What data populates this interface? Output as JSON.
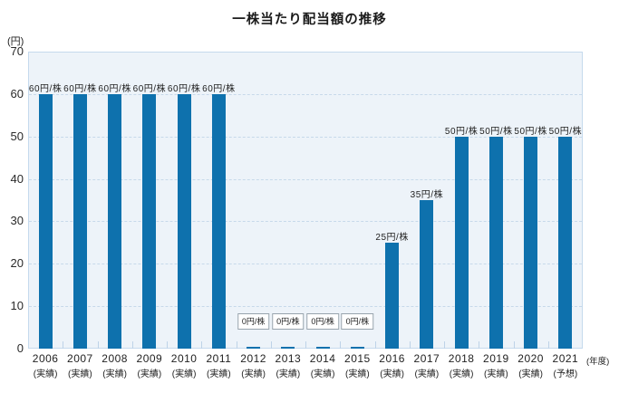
{
  "chart_data": {
    "type": "bar",
    "title": "一株当たり配当額の推移",
    "ylabel": "(円)",
    "xlabel": "(年度)",
    "ylim": [
      0,
      70
    ],
    "ytick_step": 10,
    "grid": "horizontal-dashed",
    "legend": "none",
    "bar_color": "#0e71ad",
    "plot_bg": "#edf3f9",
    "plot_border": "#c5daed",
    "categories": [
      {
        "year": "2006",
        "status": "(実績)",
        "value": 60,
        "label": "60円/株",
        "boxed": false
      },
      {
        "year": "2007",
        "status": "(実績)",
        "value": 60,
        "label": "60円/株",
        "boxed": false
      },
      {
        "year": "2008",
        "status": "(実績)",
        "value": 60,
        "label": "60円/株",
        "boxed": false
      },
      {
        "year": "2009",
        "status": "(実績)",
        "value": 60,
        "label": "60円/株",
        "boxed": false
      },
      {
        "year": "2010",
        "status": "(実績)",
        "value": 60,
        "label": "60円/株",
        "boxed": false
      },
      {
        "year": "2011",
        "status": "(実績)",
        "value": 60,
        "label": "60円/株",
        "boxed": false
      },
      {
        "year": "2012",
        "status": "(実績)",
        "value": 0,
        "label": "0円/株",
        "boxed": true
      },
      {
        "year": "2013",
        "status": "(実績)",
        "value": 0,
        "label": "0円/株",
        "boxed": true
      },
      {
        "year": "2014",
        "status": "(実績)",
        "value": 0,
        "label": "0円/株",
        "boxed": true
      },
      {
        "year": "2015",
        "status": "(実績)",
        "value": 0,
        "label": "0円/株",
        "boxed": true
      },
      {
        "year": "2016",
        "status": "(実績)",
        "value": 25,
        "label": "25円/株",
        "boxed": false
      },
      {
        "year": "2017",
        "status": "(実績)",
        "value": 35,
        "label": "35円/株",
        "boxed": false
      },
      {
        "year": "2018",
        "status": "(実績)",
        "value": 50,
        "label": "50円/株",
        "boxed": false
      },
      {
        "year": "2019",
        "status": "(実績)",
        "value": 50,
        "label": "50円/株",
        "boxed": false
      },
      {
        "year": "2020",
        "status": "(実績)",
        "value": 50,
        "label": "50円/株",
        "boxed": false
      },
      {
        "year": "2021",
        "status": "(予想)",
        "value": 50,
        "label": "50円/株",
        "boxed": false
      }
    ]
  }
}
